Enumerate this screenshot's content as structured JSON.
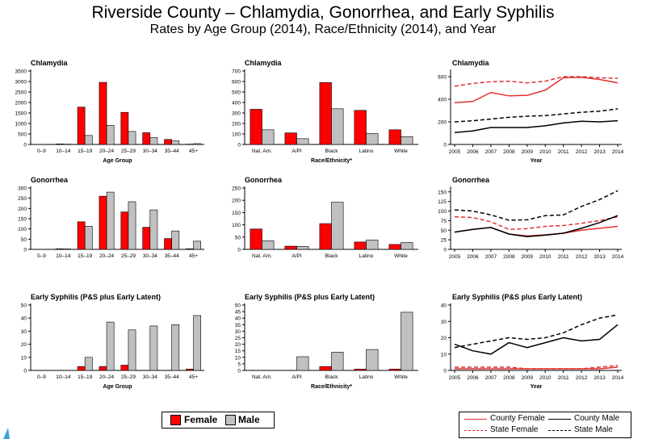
{
  "title": "Riverside County – Chlamydia, Gonorrhea, and Early Syphilis",
  "subtitle": "Rates by Age Group (2014), Race/Ethnicity (2014), and Year",
  "colors": {
    "female": "#ff0000",
    "male": "#c0c0c0",
    "county_female": "#e03030",
    "state_female": "#e03030",
    "county_male": "#000000",
    "state_male": "#000000"
  },
  "legend_bar": {
    "female": "Female",
    "male": "Male"
  },
  "legend_line": {
    "county_female": "County Female",
    "county_male": "County Male",
    "state_female": "State Female",
    "state_male": "State Male"
  },
  "chart_data": [
    {
      "type": "bar",
      "title": "Chlamydia",
      "xlabel": "Age Group",
      "categories": [
        "0–9",
        "10–14",
        "15–19",
        "20–24",
        "25–29",
        "30–34",
        "35–44",
        "45+"
      ],
      "yticks": [
        0,
        500,
        1000,
        1500,
        2000,
        2500,
        3000,
        3500
      ],
      "ylim": [
        0,
        3500
      ],
      "series": [
        {
          "name": "Female",
          "values": [
            0,
            25,
            1780,
            2960,
            1530,
            560,
            240,
            15
          ]
        },
        {
          "name": "Male",
          "values": [
            0,
            15,
            430,
            910,
            620,
            330,
            170,
            40
          ]
        }
      ]
    },
    {
      "type": "bar",
      "title": "Chlamydia",
      "xlabel": "Race/Ethnicity*",
      "categories": [
        "Nat. Am.",
        "A/PI",
        "Black",
        "Latino",
        "White"
      ],
      "yticks": [
        0,
        100,
        200,
        300,
        400,
        500,
        600,
        700
      ],
      "ylim": [
        0,
        700
      ],
      "series": [
        {
          "name": "Female",
          "values": [
            335,
            110,
            590,
            325,
            140
          ]
        },
        {
          "name": "Male",
          "values": [
            140,
            55,
            340,
            105,
            75
          ]
        }
      ]
    },
    {
      "type": "line",
      "title": "Chlamydia",
      "xlabel": "Year",
      "x": [
        2005,
        2006,
        2007,
        2008,
        2009,
        2010,
        2011,
        2012,
        2013,
        2014
      ],
      "yticks": [
        0,
        200,
        400,
        600
      ],
      "ylim": [
        0,
        650
      ],
      "series": [
        {
          "name": "County Female",
          "values": [
            370,
            380,
            460,
            430,
            435,
            480,
            590,
            595,
            575,
            545
          ]
        },
        {
          "name": "State Female",
          "values": [
            515,
            540,
            555,
            560,
            545,
            560,
            600,
            600,
            590,
            585
          ]
        },
        {
          "name": "County Male",
          "values": [
            105,
            120,
            150,
            150,
            150,
            165,
            190,
            205,
            200,
            210
          ]
        },
        {
          "name": "State Male",
          "values": [
            200,
            210,
            225,
            240,
            250,
            255,
            270,
            285,
            295,
            315
          ]
        }
      ]
    },
    {
      "type": "bar",
      "title": "Gonorrhea",
      "xlabel": "",
      "categories": [
        "0–9",
        "10–14",
        "15–19",
        "20–24",
        "25–29",
        "30–34",
        "35–44",
        "45+"
      ],
      "yticks": [
        0,
        50,
        100,
        150,
        200,
        250,
        300
      ],
      "ylim": [
        0,
        300
      ],
      "series": [
        {
          "name": "Female",
          "values": [
            0,
            3,
            135,
            260,
            183,
            108,
            53,
            3
          ]
        },
        {
          "name": "Male",
          "values": [
            0,
            2,
            113,
            280,
            233,
            193,
            90,
            40
          ]
        }
      ]
    },
    {
      "type": "bar",
      "title": "Gonorrhea",
      "xlabel": "",
      "categories": [
        "Nat. Am.",
        "A/PI",
        "Black",
        "Latino",
        "White"
      ],
      "yticks": [
        0,
        50,
        100,
        150,
        200,
        250
      ],
      "ylim": [
        0,
        250
      ],
      "series": [
        {
          "name": "Female",
          "values": [
            83,
            13,
            105,
            30,
            20
          ]
        },
        {
          "name": "Male",
          "values": [
            35,
            12,
            192,
            38,
            28
          ]
        }
      ]
    },
    {
      "type": "line",
      "title": "Gonorrhea",
      "xlabel": "",
      "x": [
        2005,
        2006,
        2007,
        2008,
        2009,
        2010,
        2011,
        2012,
        2013,
        2014
      ],
      "yticks": [
        0,
        25,
        50,
        75,
        100,
        125,
        150
      ],
      "ylim": [
        0,
        160
      ],
      "series": [
        {
          "name": "County Female",
          "values": [
            45,
            52,
            57,
            40,
            35,
            38,
            42,
            50,
            55,
            60
          ]
        },
        {
          "name": "State Female",
          "values": [
            85,
            83,
            72,
            52,
            54,
            60,
            62,
            68,
            75,
            85
          ]
        },
        {
          "name": "County Male",
          "values": [
            45,
            52,
            57,
            40,
            33,
            37,
            42,
            55,
            70,
            88
          ]
        },
        {
          "name": "State Male",
          "values": [
            103,
            100,
            90,
            76,
            77,
            88,
            90,
            112,
            130,
            153
          ]
        }
      ]
    },
    {
      "type": "bar",
      "title": "Early Syphilis (P&S plus Early Latent)",
      "xlabel": "Age Group",
      "categories": [
        "0–9",
        "10–14",
        "15–19",
        "20–24",
        "25–29",
        "30–34",
        "35–44",
        "45+"
      ],
      "yticks": [
        0,
        10,
        20,
        30,
        40,
        50
      ],
      "ylim": [
        0,
        50
      ],
      "series": [
        {
          "name": "Female",
          "values": [
            0,
            0,
            3,
            3,
            4,
            0,
            0,
            1
          ]
        },
        {
          "name": "Male",
          "values": [
            0,
            0,
            10,
            37,
            31,
            34,
            35,
            42
          ]
        }
      ]
    },
    {
      "type": "bar",
      "title": "Early Syphilis (P&S plus Early Latent)",
      "xlabel": "Race/Ethnicity*",
      "categories": [
        "Nat. Am.",
        "A/PI",
        "Black",
        "Latino",
        "White"
      ],
      "yticks": [
        0,
        5,
        10,
        15,
        20,
        25,
        30,
        35,
        40,
        45,
        50
      ],
      "ylim": [
        0,
        50
      ],
      "series": [
        {
          "name": "Female",
          "values": [
            0,
            0,
            3,
            1,
            1
          ]
        },
        {
          "name": "Male",
          "values": [
            0,
            10.5,
            14,
            16,
            44.5
          ]
        }
      ]
    },
    {
      "type": "line",
      "title": "Early Syphilis (P&S plus Early Latent)",
      "xlabel": "Year",
      "x": [
        2005,
        2006,
        2007,
        2008,
        2009,
        2010,
        2011,
        2012,
        2013,
        2014
      ],
      "yticks": [
        0,
        10,
        20,
        30,
        40
      ],
      "ylim": [
        0,
        40
      ],
      "series": [
        {
          "name": "County Female",
          "values": [
            1,
            1,
            1,
            1,
            1,
            1,
            1,
            1,
            1,
            2
          ]
        },
        {
          "name": "State Female",
          "values": [
            2,
            2,
            2,
            2,
            1,
            1,
            1,
            1,
            2,
            3
          ]
        },
        {
          "name": "County Male",
          "values": [
            16,
            12,
            10,
            17,
            14,
            17,
            20,
            18,
            19,
            28
          ]
        },
        {
          "name": "State Male",
          "values": [
            14,
            16,
            18,
            20,
            19,
            20,
            23,
            28,
            32,
            34
          ]
        }
      ]
    }
  ]
}
